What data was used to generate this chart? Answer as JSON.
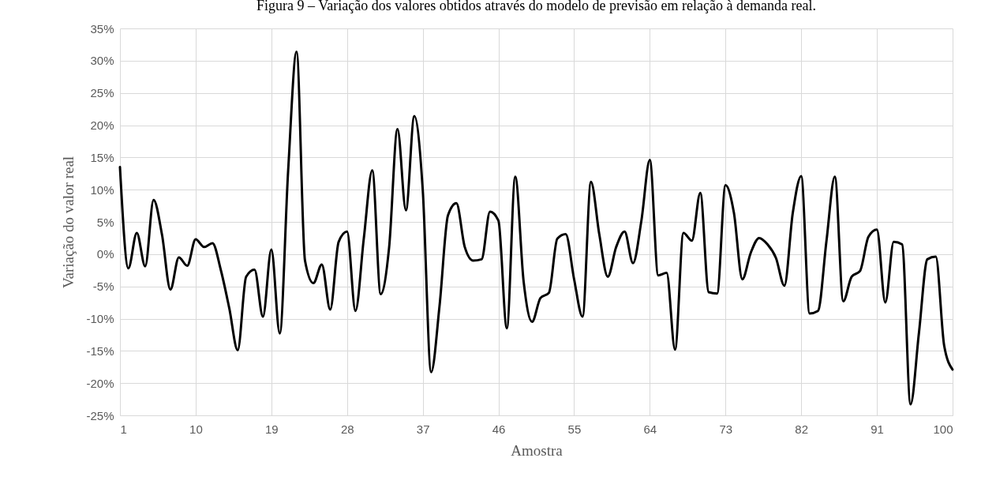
{
  "chart_data": {
    "type": "line",
    "title": "Figura 9 – Variação dos valores obtidos através do modelo de previsão em relação à demanda real.",
    "xlabel": "Amostra",
    "ylabel": "Variação do valor real",
    "x": [
      1,
      2,
      3,
      4,
      5,
      6,
      7,
      8,
      9,
      10,
      11,
      12,
      13,
      14,
      15,
      16,
      17,
      18,
      19,
      20,
      21,
      22,
      23,
      24,
      25,
      26,
      27,
      28,
      29,
      30,
      31,
      32,
      33,
      34,
      35,
      36,
      37,
      38,
      39,
      40,
      41,
      42,
      43,
      44,
      45,
      46,
      47,
      48,
      49,
      50,
      51,
      52,
      53,
      54,
      55,
      56,
      57,
      58,
      59,
      60,
      61,
      62,
      63,
      64,
      65,
      66,
      67,
      68,
      69,
      70,
      71,
      72,
      73,
      74,
      75,
      76,
      77,
      78,
      79,
      80,
      81,
      82,
      83,
      84,
      85,
      86,
      87,
      88,
      89,
      90,
      91,
      92,
      93,
      94,
      95,
      96,
      97,
      98,
      99,
      100
    ],
    "series": [
      {
        "color": "#000000",
        "values": [
          13.5,
          -2.2,
          3.3,
          -1.9,
          8.4,
          3,
          -5.5,
          -0.5,
          -1.8,
          2.3,
          1.1,
          1.7,
          -2.5,
          -8.4,
          -14.9,
          -3.5,
          -2.4,
          -9.7,
          0.7,
          -12.3,
          13,
          31.4,
          -1,
          -4.5,
          -1.6,
          -8.6,
          1.9,
          3.5,
          -8.8,
          2.5,
          13,
          -6.2,
          1,
          19.4,
          6.8,
          21.4,
          10,
          -18.3,
          -8,
          6,
          7.9,
          1.1,
          -1,
          -0.8,
          6.6,
          5.2,
          -11.5,
          12,
          -4.3,
          -10.5,
          -6.8,
          -6,
          2.4,
          3.1,
          -3.9,
          -9.7,
          11.2,
          3,
          -3.5,
          1.1,
          3.5,
          -1.4,
          5.2,
          14.6,
          -3.3,
          -2.9,
          -14.8,
          3.3,
          2.1,
          9.5,
          -5.9,
          -6.1,
          10.7,
          6.4,
          -3.9,
          0.2,
          2.5,
          1.5,
          -0.6,
          -4.9,
          6.4,
          12.1,
          -9.2,
          -8.8,
          2,
          12,
          -7.3,
          -3.5,
          -2.6,
          2.7,
          3.8,
          -7.5,
          1.9,
          1.5,
          -23.3,
          -12.2,
          -0.8,
          -0.4,
          -14.2,
          -17.9
        ]
      }
    ],
    "xlim": [
      1,
      100
    ],
    "xticks": [
      1,
      10,
      19,
      28,
      37,
      46,
      55,
      64,
      73,
      82,
      91,
      100
    ],
    "ylim": [
      -25,
      35
    ],
    "yticks": [
      {
        "value": -25,
        "label": "-25%"
      },
      {
        "value": -20,
        "label": "-20%"
      },
      {
        "value": -15,
        "label": "-15%"
      },
      {
        "value": -10,
        "label": "-10%"
      },
      {
        "value": -5,
        "label": "-5%"
      },
      {
        "value": 0,
        "label": "0%"
      },
      {
        "value": 5,
        "label": "5%"
      },
      {
        "value": 10,
        "label": "10%"
      },
      {
        "value": 15,
        "label": "15%"
      },
      {
        "value": 20,
        "label": "20%"
      },
      {
        "value": 25,
        "label": "25%"
      },
      {
        "value": 30,
        "label": "30%"
      },
      {
        "value": 35,
        "label": "35%"
      }
    ],
    "grid": true,
    "line_style": "solid"
  }
}
